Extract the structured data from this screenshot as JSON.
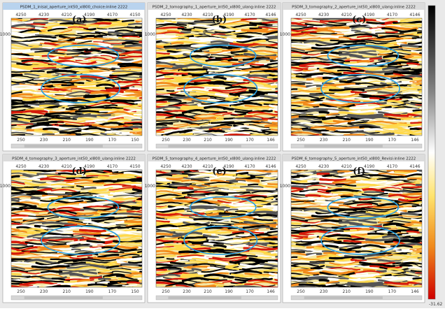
{
  "panels": [
    {
      "title": "PSDM_1_inisal_aperture_int50_xl800_choice:inline 2222",
      "label": "(a)",
      "top_ticks": [
        "4250",
        "4230",
        "4210",
        "4190",
        "4170",
        "4150"
      ],
      "bottom_ticks": [
        "250",
        "230",
        "210",
        "190",
        "170",
        "150"
      ],
      "depth_tick": "1000"
    },
    {
      "title": "PSDM_2_tomography_1_aperture_int50_xl800_ulang:inline 2222",
      "label": "(b)",
      "top_ticks": [
        "4250",
        "4230",
        "4210",
        "4190",
        "4170",
        "4146"
      ],
      "bottom_ticks": [
        "250",
        "230",
        "210",
        "190",
        "170",
        "146"
      ],
      "depth_tick": "1000"
    },
    {
      "title": "PSDM_3_tomography_2_aperture_int50_xl800_ulang:inline 2222",
      "label": "(c)",
      "top_ticks": [
        "4250",
        "4230",
        "4210",
        "4190",
        "4170",
        "4146"
      ],
      "bottom_ticks": [
        "250",
        "230",
        "210",
        "190",
        "170",
        "146"
      ],
      "depth_tick": "1000"
    },
    {
      "title": "PSDM_4_tomography_3_aperture_int50_xl800_ulang:inline 2222",
      "label": "(d)",
      "top_ticks": [
        "4250",
        "4230",
        "4210",
        "4190",
        "4170",
        "4150"
      ],
      "bottom_ticks": [
        "250",
        "230",
        "210",
        "190",
        "170",
        "150"
      ],
      "depth_tick": "1000"
    },
    {
      "title": "PSDM_5_tomography_4_aperture_int50_xl800_ulang:inline 2222",
      "label": "(e)",
      "top_ticks": [
        "4250",
        "4230",
        "4210",
        "4190",
        "4170",
        "4146"
      ],
      "bottom_ticks": [
        "250",
        "230",
        "210",
        "190",
        "170",
        "146"
      ],
      "depth_tick": "1000"
    },
    {
      "title": "PSDM_6_tomography_5_aperture_int50_xl800_Revisi:inline 2222",
      "label": "(f)",
      "top_ticks": [
        "4250",
        "4230",
        "4210",
        "4190",
        "4170",
        "4146"
      ],
      "bottom_ticks": [
        "250",
        "230",
        "210",
        "190",
        "170",
        "146"
      ],
      "depth_tick": "1000"
    }
  ],
  "colorbar": {
    "min_label": "-31.62"
  }
}
